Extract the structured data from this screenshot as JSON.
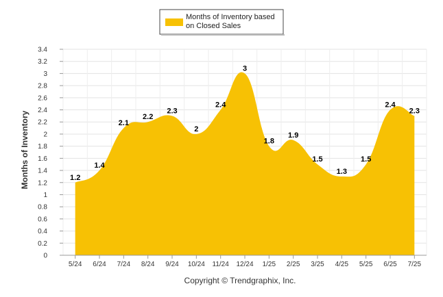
{
  "chart_data": {
    "type": "area",
    "categories": [
      "5/24",
      "6/24",
      "7/24",
      "8/24",
      "9/24",
      "10/24",
      "11/24",
      "12/24",
      "1/25",
      "2/25",
      "3/25",
      "4/25",
      "5/25",
      "6/25",
      "7/25"
    ],
    "series": [
      {
        "name": "Months of Inventory based on Closed Sales",
        "name_lines": [
          "Months of Inventory based",
          "on Closed Sales"
        ],
        "values": [
          1.2,
          1.4,
          2.1,
          2.2,
          2.3,
          2,
          2.4,
          3,
          1.8,
          1.9,
          1.5,
          1.3,
          1.5,
          2.4,
          2.3
        ],
        "color": "#f7c104"
      }
    ],
    "data_labels": [
      "1.2",
      "1.4",
      "2.1",
      "2.2",
      "2.3",
      "2",
      "2.4",
      "3",
      "1.8",
      "1.9",
      "1.5",
      "1.3",
      "1.5",
      "2.4",
      "2.3"
    ],
    "ylabel": "Months of Inventory",
    "xlabel": "",
    "ylim": [
      0,
      3.4
    ],
    "yticks": [
      "0",
      "0.2",
      "0.4",
      "0.6",
      "0.8",
      "1",
      "1.2",
      "1.4",
      "1.6",
      "1.8",
      "2",
      "2.2",
      "2.4",
      "2.6",
      "2.8",
      "3",
      "3.2",
      "3.4"
    ],
    "grid": true,
    "legend_position": "top-center"
  },
  "footer": {
    "copyright": "Copyright © Trendgraphix, Inc."
  }
}
